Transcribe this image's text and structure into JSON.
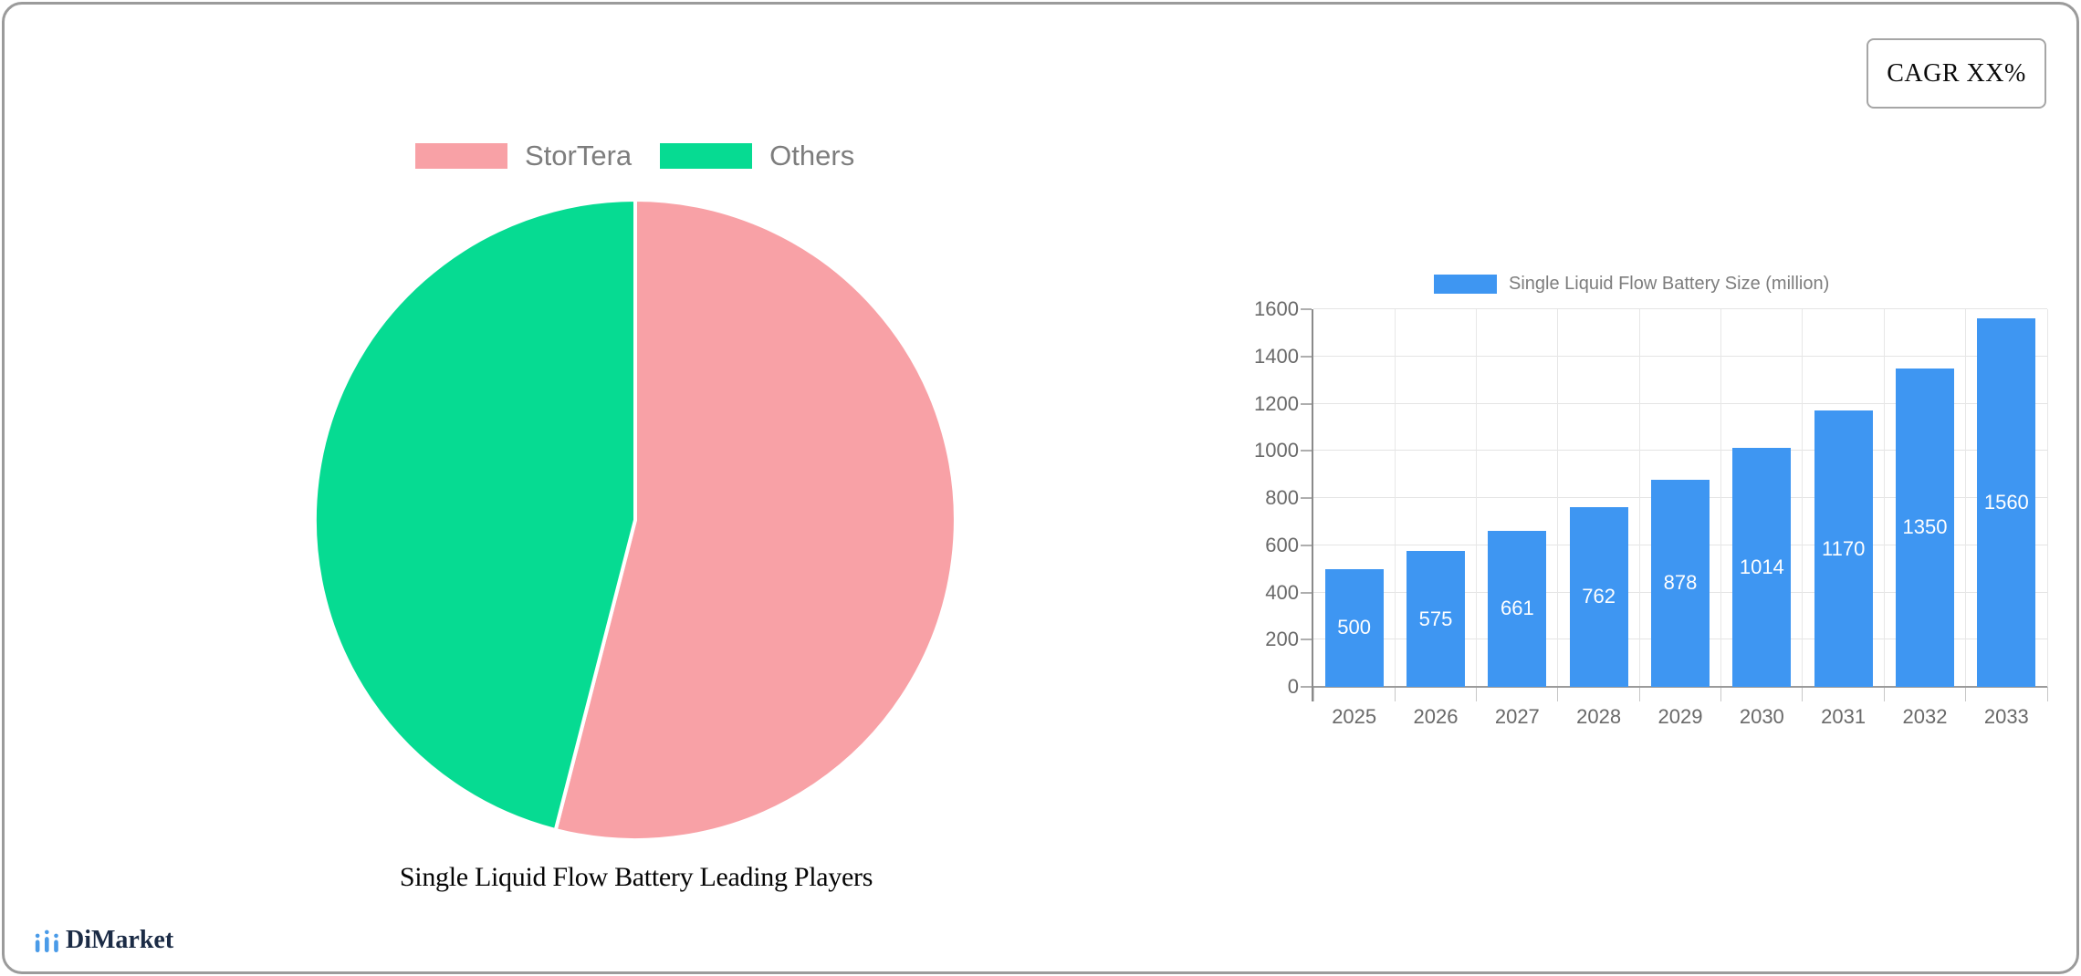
{
  "cagr": {
    "label": "CAGR XX%"
  },
  "logo": {
    "text": "DiMarket",
    "icon": "bar-chart-icon",
    "icon_color": "#4a9be8",
    "text_color": "#1b2b45"
  },
  "chart_data": [
    {
      "type": "pie",
      "title": "Single Liquid Flow Battery Leading Players",
      "labels": [
        "StorTera",
        "Others"
      ],
      "values": [
        54,
        46
      ],
      "colors": [
        "#f8a1a6",
        "#06db92"
      ],
      "slice_border_color": "#ffffff",
      "legend_position": "top",
      "legend_text_color": "#7d7d7d"
    },
    {
      "type": "bar",
      "legend": "Single Liquid Flow Battery Size (million)",
      "categories": [
        "2025",
        "2026",
        "2027",
        "2028",
        "2029",
        "2030",
        "2031",
        "2032",
        "2033"
      ],
      "values": [
        500,
        575,
        661,
        762,
        878,
        1014,
        1170,
        1350,
        1560
      ],
      "ylim": [
        0,
        1600
      ],
      "ytick_step": 200,
      "bar_color": "#3e96f2",
      "value_label_color": "#ffffff",
      "axis_text_color": "#696969",
      "grid": true,
      "legend_position": "top"
    }
  ]
}
